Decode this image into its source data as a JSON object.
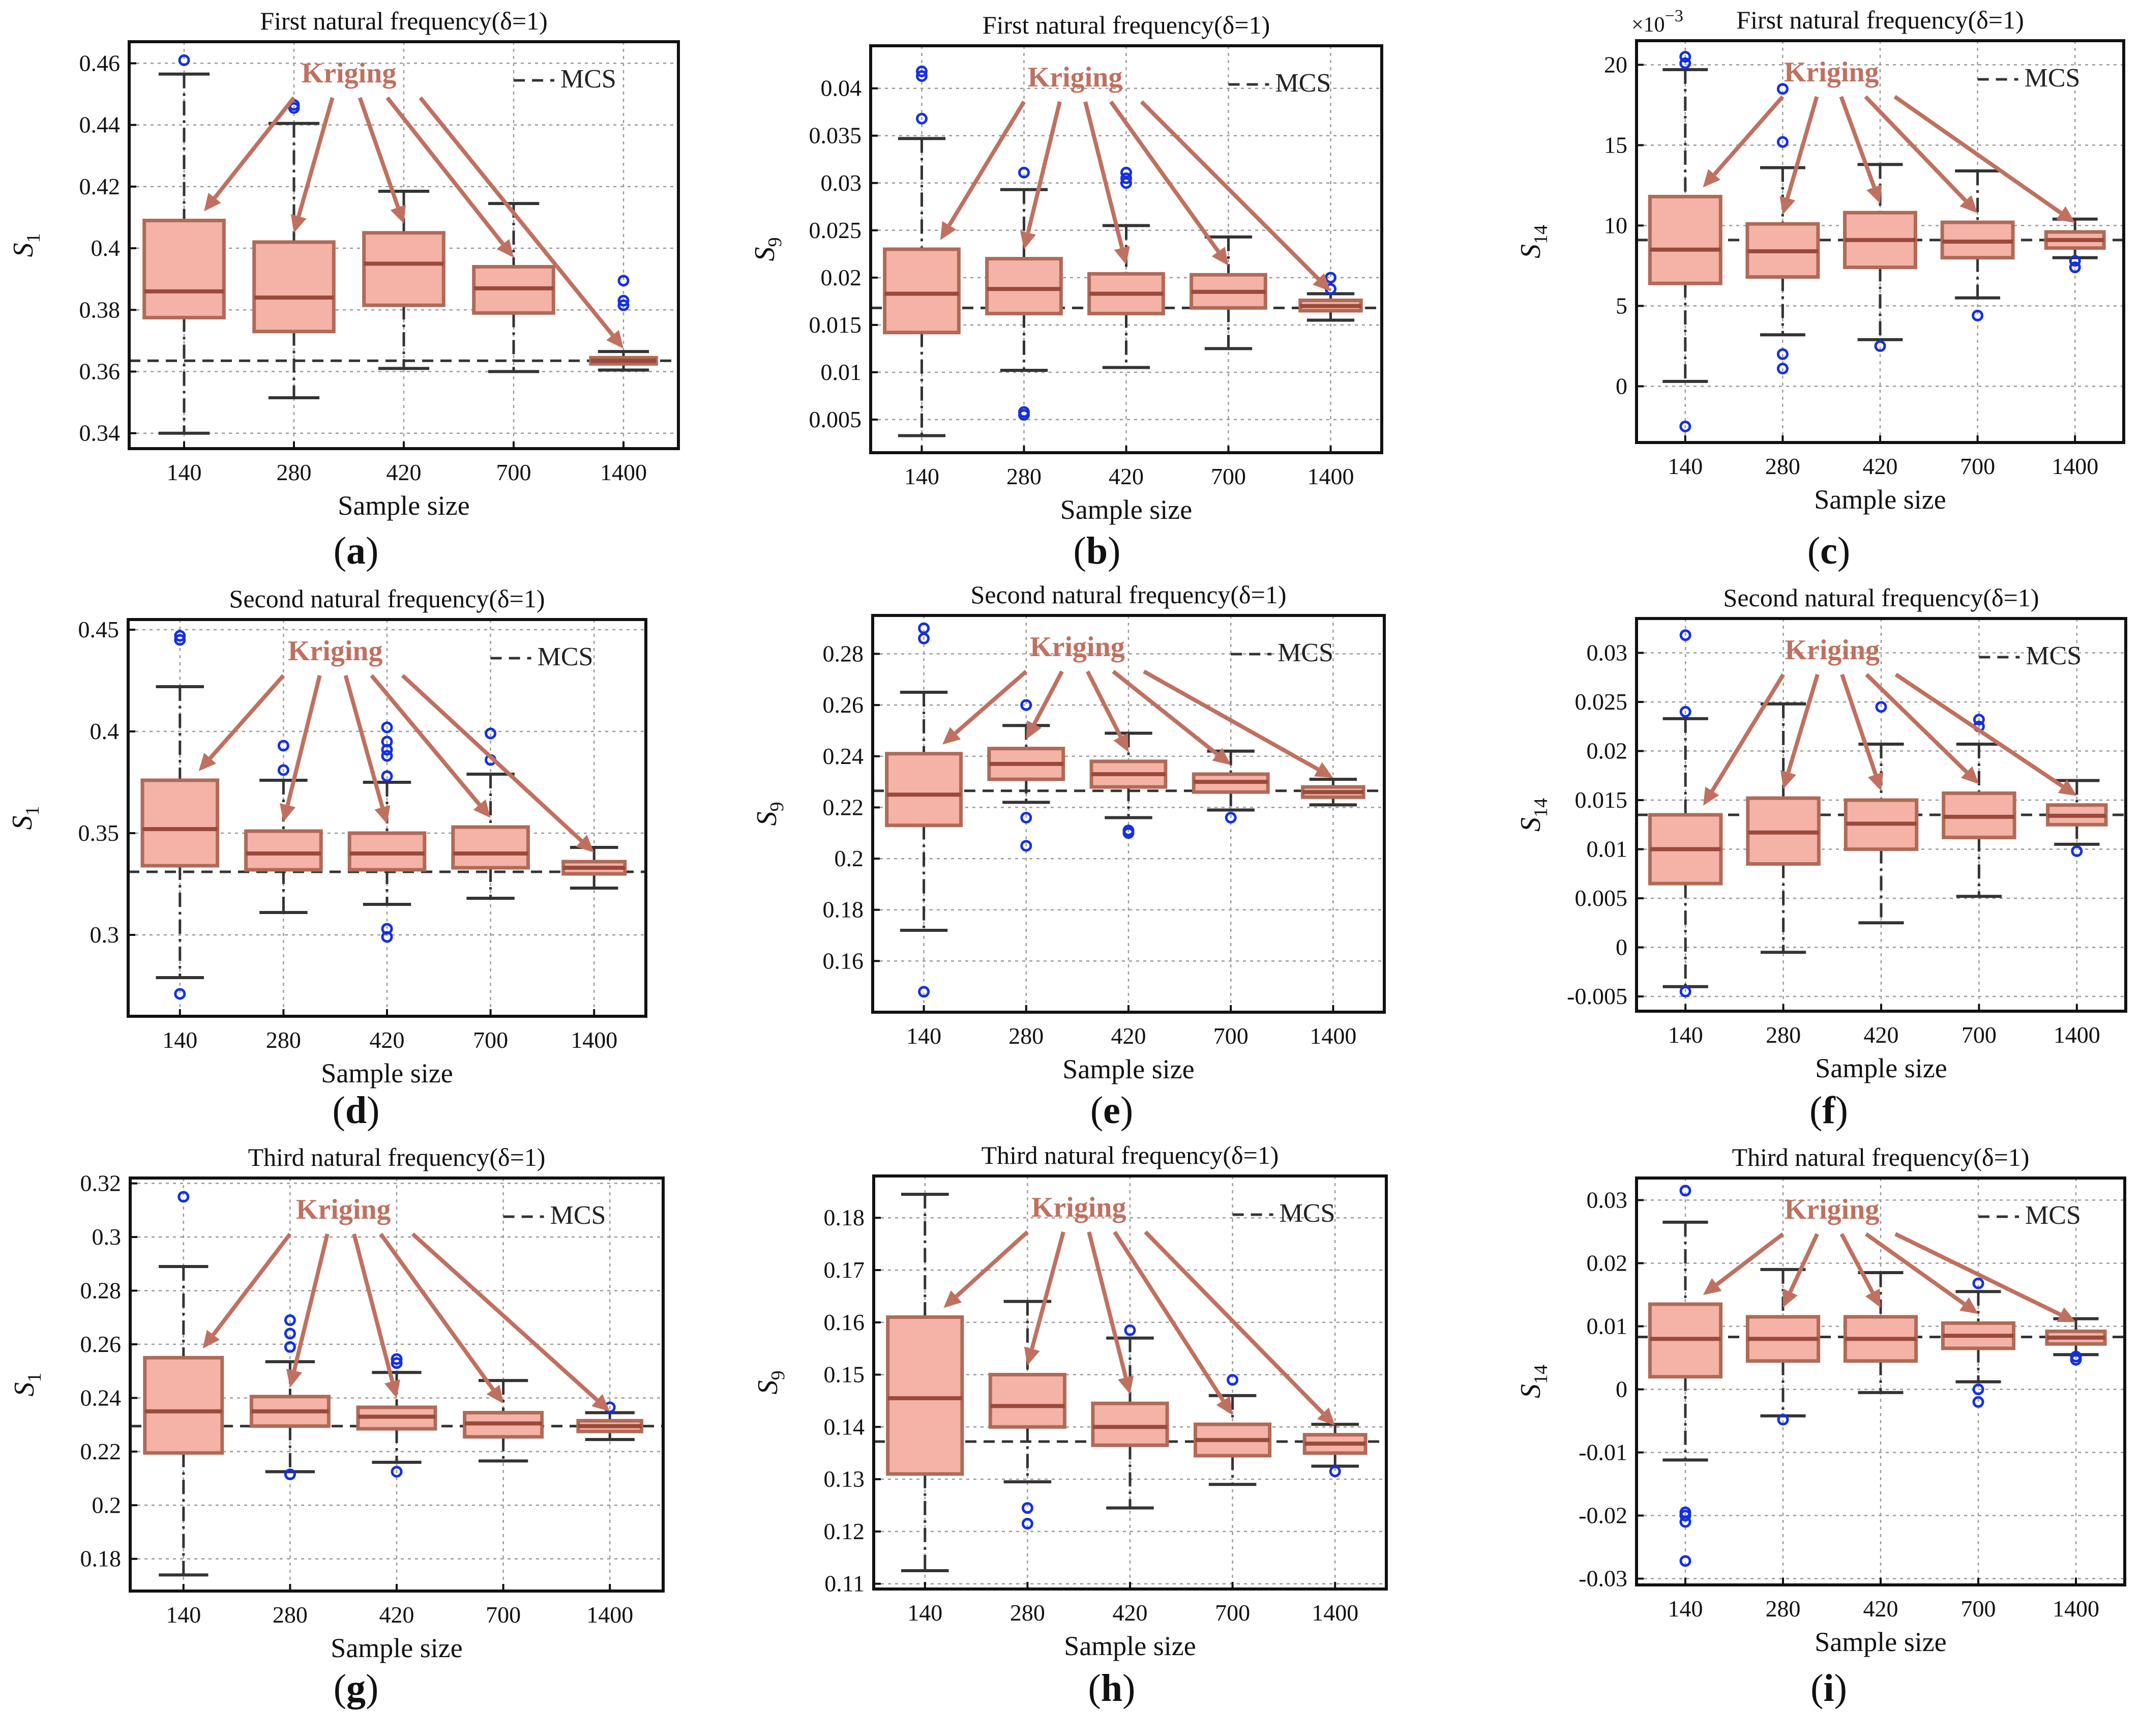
{
  "figure": {
    "colors": {
      "box_fill": "#f4b3a6",
      "box_edge": "#b06a58",
      "outlier": "#1530e0",
      "kriging": "#c07060",
      "mcs": "#333333"
    },
    "annotation_label": "Kriging",
    "legend_label": "MCS",
    "xlabel": "Sample size"
  },
  "chart_data": [
    {
      "panel": "(a)",
      "letter": "a",
      "type": "boxplot",
      "title": "First natural frequency(δ=1)",
      "xlabel": "Sample size",
      "ylabel": "S",
      "ylabel_sub": "1",
      "categories": [
        "140",
        "280",
        "420",
        "700",
        "1400"
      ],
      "ylim": [
        0.335,
        0.467
      ],
      "yticks": [
        0.34,
        0.36,
        0.38,
        0.4,
        0.42,
        0.44,
        0.46
      ],
      "ytick_labels": [
        "0.34",
        "0.36",
        "0.38",
        "0.4",
        "0.42",
        "0.44",
        "0.46"
      ],
      "mcs": 0.3635,
      "boxes": [
        {
          "min": 0.34,
          "q1": 0.3775,
          "median": 0.386,
          "q3": 0.409,
          "max": 0.4565,
          "outliers": [
            0.461
          ]
        },
        {
          "min": 0.3515,
          "q1": 0.373,
          "median": 0.384,
          "q3": 0.402,
          "max": 0.4405,
          "outliers": [
            0.4465,
            0.4455
          ]
        },
        {
          "min": 0.361,
          "q1": 0.3815,
          "median": 0.395,
          "q3": 0.405,
          "max": 0.4185,
          "outliers": []
        },
        {
          "min": 0.36,
          "q1": 0.379,
          "median": 0.387,
          "q3": 0.394,
          "max": 0.4145,
          "outliers": []
        },
        {
          "min": 0.3605,
          "q1": 0.3625,
          "median": 0.3635,
          "q3": 0.3645,
          "max": 0.3665,
          "outliers": [
            0.3895,
            0.383,
            0.3815
          ]
        }
      ]
    },
    {
      "panel": "(b)",
      "letter": "b",
      "type": "boxplot",
      "title": "First natural frequency(δ=1)",
      "xlabel": "Sample size",
      "ylabel": "S",
      "ylabel_sub": "9",
      "categories": [
        "140",
        "280",
        "420",
        "700",
        "1400"
      ],
      "ylim": [
        0.0015,
        0.0445
      ],
      "yticks": [
        0.005,
        0.01,
        0.015,
        0.02,
        0.025,
        0.03,
        0.035,
        0.04
      ],
      "ytick_labels": [
        "0.005",
        "0.01",
        "0.015",
        "0.02",
        "0.025",
        "0.03",
        "0.035",
        "0.04"
      ],
      "mcs": 0.0168,
      "boxes": [
        {
          "min": 0.0033,
          "q1": 0.0142,
          "median": 0.0183,
          "q3": 0.023,
          "max": 0.0347,
          "outliers": [
            0.0418,
            0.0413,
            0.0368
          ]
        },
        {
          "min": 0.0102,
          "q1": 0.0162,
          "median": 0.0188,
          "q3": 0.022,
          "max": 0.0293,
          "outliers": [
            0.0311,
            0.0058,
            0.0055
          ]
        },
        {
          "min": 0.0105,
          "q1": 0.0162,
          "median": 0.0183,
          "q3": 0.0204,
          "max": 0.0255,
          "outliers": [
            0.0311,
            0.0305,
            0.03
          ]
        },
        {
          "min": 0.0125,
          "q1": 0.0168,
          "median": 0.0185,
          "q3": 0.0203,
          "max": 0.0243,
          "outliers": []
        },
        {
          "min": 0.0155,
          "q1": 0.0165,
          "median": 0.017,
          "q3": 0.0176,
          "max": 0.0183,
          "outliers": [
            0.02,
            0.0188
          ]
        }
      ]
    },
    {
      "panel": "(c)",
      "letter": "c",
      "type": "boxplot",
      "title": "First natural frequency(δ=1)",
      "xlabel": "Sample size",
      "ylabel": "S",
      "ylabel_sub": "14",
      "exponent_label": "×10",
      "exponent_power": "−3",
      "categories": [
        "140",
        "280",
        "420",
        "700",
        "1400"
      ],
      "ylim": [
        -3.5,
        21.5
      ],
      "yticks": [
        0,
        5,
        10,
        15,
        20
      ],
      "ytick_labels": [
        "0",
        "5",
        "10",
        "15",
        "20"
      ],
      "mcs": 9.1,
      "boxes": [
        {
          "min": 0.3,
          "q1": 6.4,
          "median": 8.5,
          "q3": 11.8,
          "max": 19.7,
          "outliers": [
            20.5,
            20.1,
            -2.5
          ]
        },
        {
          "min": 3.2,
          "q1": 6.8,
          "median": 8.4,
          "q3": 10.1,
          "max": 13.6,
          "outliers": [
            18.5,
            15.2,
            2.0,
            1.1
          ]
        },
        {
          "min": 2.9,
          "q1": 7.4,
          "median": 9.1,
          "q3": 10.8,
          "max": 13.8,
          "outliers": [
            2.5
          ]
        },
        {
          "min": 5.5,
          "q1": 8.0,
          "median": 9.0,
          "q3": 10.2,
          "max": 13.4,
          "outliers": [
            4.4
          ]
        },
        {
          "min": 8.0,
          "q1": 8.6,
          "median": 9.1,
          "q3": 9.6,
          "max": 10.4,
          "outliers": [
            7.8,
            7.4
          ]
        }
      ]
    },
    {
      "panel": "(d)",
      "letter": "d",
      "type": "boxplot",
      "title": "Second natural frequency(δ=1)",
      "xlabel": "Sample size",
      "ylabel": "S",
      "ylabel_sub": "1",
      "categories": [
        "140",
        "280",
        "420",
        "700",
        "1400"
      ],
      "ylim": [
        0.26,
        0.455
      ],
      "yticks": [
        0.3,
        0.35,
        0.4,
        0.45
      ],
      "ytick_labels": [
        "0.3",
        "0.35",
        "0.4",
        "0.45"
      ],
      "mcs": 0.331,
      "boxes": [
        {
          "min": 0.279,
          "q1": 0.334,
          "median": 0.352,
          "q3": 0.376,
          "max": 0.422,
          "outliers": [
            0.447,
            0.445,
            0.271
          ]
        },
        {
          "min": 0.311,
          "q1": 0.332,
          "median": 0.34,
          "q3": 0.351,
          "max": 0.376,
          "outliers": [
            0.393,
            0.381
          ]
        },
        {
          "min": 0.315,
          "q1": 0.332,
          "median": 0.34,
          "q3": 0.35,
          "max": 0.375,
          "outliers": [
            0.402,
            0.395,
            0.391,
            0.388,
            0.378,
            0.303,
            0.299
          ]
        },
        {
          "min": 0.318,
          "q1": 0.333,
          "median": 0.34,
          "q3": 0.353,
          "max": 0.379,
          "outliers": [
            0.399,
            0.386
          ]
        },
        {
          "min": 0.323,
          "q1": 0.33,
          "median": 0.333,
          "q3": 0.336,
          "max": 0.343,
          "outliers": []
        }
      ]
    },
    {
      "panel": "(e)",
      "letter": "e",
      "type": "boxplot",
      "title": "Second natural frequency(δ=1)",
      "xlabel": "Sample size",
      "ylabel": "S",
      "ylabel_sub": "9",
      "categories": [
        "140",
        "280",
        "420",
        "700",
        "1400"
      ],
      "ylim": [
        0.14,
        0.295
      ],
      "yticks": [
        0.16,
        0.18,
        0.2,
        0.22,
        0.24,
        0.26,
        0.28
      ],
      "ytick_labels": [
        "0.16",
        "0.18",
        "0.2",
        "0.22",
        "0.24",
        "0.26",
        "0.28"
      ],
      "mcs": 0.2265,
      "boxes": [
        {
          "min": 0.172,
          "q1": 0.213,
          "median": 0.225,
          "q3": 0.241,
          "max": 0.265,
          "outliers": [
            0.29,
            0.286,
            0.148
          ]
        },
        {
          "min": 0.222,
          "q1": 0.231,
          "median": 0.237,
          "q3": 0.243,
          "max": 0.252,
          "outliers": [
            0.26,
            0.216,
            0.205
          ]
        },
        {
          "min": 0.216,
          "q1": 0.228,
          "median": 0.233,
          "q3": 0.238,
          "max": 0.249,
          "outliers": [
            0.211,
            0.21
          ]
        },
        {
          "min": 0.219,
          "q1": 0.226,
          "median": 0.23,
          "q3": 0.233,
          "max": 0.242,
          "outliers": [
            0.216
          ]
        },
        {
          "min": 0.221,
          "q1": 0.224,
          "median": 0.226,
          "q3": 0.228,
          "max": 0.231,
          "outliers": []
        }
      ]
    },
    {
      "panel": "(f)",
      "letter": "f",
      "type": "boxplot",
      "title": "Second natural frequency(δ=1)",
      "xlabel": "Sample size",
      "ylabel": "S",
      "ylabel_sub": "14",
      "categories": [
        "140",
        "280",
        "420",
        "700",
        "1400"
      ],
      "ylim": [
        -0.0065,
        0.0335
      ],
      "yticks": [
        -0.005,
        0,
        0.005,
        0.01,
        0.015,
        0.02,
        0.025,
        0.03
      ],
      "ytick_labels": [
        "-0.005",
        "0",
        "0.005",
        "0.01",
        "0.015",
        "0.02",
        "0.025",
        "0.03"
      ],
      "mcs": 0.0135,
      "boxes": [
        {
          "min": -0.004,
          "q1": 0.0065,
          "median": 0.01,
          "q3": 0.0135,
          "max": 0.0233,
          "outliers": [
            0.0318,
            0.024,
            -0.0045
          ]
        },
        {
          "min": -0.0005,
          "q1": 0.0085,
          "median": 0.0117,
          "q3": 0.0152,
          "max": 0.0248,
          "outliers": []
        },
        {
          "min": 0.0025,
          "q1": 0.01,
          "median": 0.0126,
          "q3": 0.015,
          "max": 0.0207,
          "outliers": [
            0.0245
          ]
        },
        {
          "min": 0.0052,
          "q1": 0.0112,
          "median": 0.0133,
          "q3": 0.0157,
          "max": 0.0207,
          "outliers": [
            0.0232,
            0.0225
          ]
        },
        {
          "min": 0.0105,
          "q1": 0.0125,
          "median": 0.0134,
          "q3": 0.0145,
          "max": 0.017,
          "outliers": [
            0.0098
          ]
        }
      ]
    },
    {
      "panel": "(g)",
      "letter": "g",
      "type": "boxplot",
      "title": "Third natural frequency(δ=1)",
      "xlabel": "Sample size",
      "ylabel": "S",
      "ylabel_sub": "1",
      "categories": [
        "140",
        "280",
        "420",
        "700",
        "1400"
      ],
      "ylim": [
        0.168,
        0.322
      ],
      "yticks": [
        0.18,
        0.2,
        0.22,
        0.24,
        0.26,
        0.28,
        0.3,
        0.32
      ],
      "ytick_labels": [
        "0.18",
        "0.2",
        "0.22",
        "0.24",
        "0.26",
        "0.28",
        "0.3",
        "0.32"
      ],
      "mcs": 0.2295,
      "boxes": [
        {
          "min": 0.174,
          "q1": 0.2195,
          "median": 0.235,
          "q3": 0.255,
          "max": 0.289,
          "outliers": [
            0.315
          ]
        },
        {
          "min": 0.2125,
          "q1": 0.2295,
          "median": 0.235,
          "q3": 0.2405,
          "max": 0.2535,
          "outliers": [
            0.269,
            0.264,
            0.259,
            0.2115
          ]
        },
        {
          "min": 0.216,
          "q1": 0.2285,
          "median": 0.233,
          "q3": 0.2365,
          "max": 0.2495,
          "outliers": [
            0.2545,
            0.253,
            0.2125
          ]
        },
        {
          "min": 0.2165,
          "q1": 0.2255,
          "median": 0.2305,
          "q3": 0.2345,
          "max": 0.2465,
          "outliers": []
        },
        {
          "min": 0.2245,
          "q1": 0.2275,
          "median": 0.2295,
          "q3": 0.2315,
          "max": 0.2345,
          "outliers": [
            0.2365
          ]
        }
      ]
    },
    {
      "panel": "(h)",
      "letter": "h",
      "type": "boxplot",
      "title": "Third natural frequency(δ=1)",
      "xlabel": "Sample size",
      "ylabel": "S",
      "ylabel_sub": "9",
      "categories": [
        "140",
        "280",
        "420",
        "700",
        "1400"
      ],
      "ylim": [
        0.109,
        0.188
      ],
      "yticks": [
        0.11,
        0.12,
        0.13,
        0.14,
        0.15,
        0.16,
        0.17,
        0.18
      ],
      "ytick_labels": [
        "0.11",
        "0.12",
        "0.13",
        "0.14",
        "0.15",
        "0.16",
        "0.17",
        "0.18"
      ],
      "mcs": 0.1372,
      "boxes": [
        {
          "min": 0.1125,
          "q1": 0.131,
          "median": 0.1455,
          "q3": 0.161,
          "max": 0.1845,
          "outliers": []
        },
        {
          "min": 0.1295,
          "q1": 0.14,
          "median": 0.144,
          "q3": 0.15,
          "max": 0.164,
          "outliers": [
            0.1245,
            0.1215
          ]
        },
        {
          "min": 0.1245,
          "q1": 0.1365,
          "median": 0.14,
          "q3": 0.1445,
          "max": 0.157,
          "outliers": [
            0.1585
          ]
        },
        {
          "min": 0.129,
          "q1": 0.1345,
          "median": 0.1375,
          "q3": 0.1405,
          "max": 0.146,
          "outliers": [
            0.149
          ]
        },
        {
          "min": 0.1325,
          "q1": 0.135,
          "median": 0.1368,
          "q3": 0.1385,
          "max": 0.1405,
          "outliers": [
            0.1315
          ]
        }
      ]
    },
    {
      "panel": "(i)",
      "letter": "i",
      "type": "boxplot",
      "title": "Third natural frequency(δ=1)",
      "xlabel": "Sample size",
      "ylabel": "S",
      "ylabel_sub": "14",
      "categories": [
        "140",
        "280",
        "420",
        "700",
        "1400"
      ],
      "ylim": [
        -0.031,
        0.0335
      ],
      "yticks": [
        -0.03,
        -0.02,
        -0.01,
        0,
        0.01,
        0.02,
        0.03
      ],
      "ytick_labels": [
        "-0.03",
        "-0.02",
        "-0.01",
        "0",
        "0.01",
        "0.02",
        "0.03"
      ],
      "mcs": 0.0083,
      "boxes": [
        {
          "min": -0.0112,
          "q1": 0.002,
          "median": 0.008,
          "q3": 0.0135,
          "max": 0.0265,
          "outliers": [
            0.0315,
            -0.0195,
            -0.02,
            -0.021,
            -0.0272
          ]
        },
        {
          "min": -0.0042,
          "q1": 0.0045,
          "median": 0.008,
          "q3": 0.0115,
          "max": 0.019,
          "outliers": [
            -0.0048
          ]
        },
        {
          "min": -0.0005,
          "q1": 0.0045,
          "median": 0.008,
          "q3": 0.0115,
          "max": 0.0185,
          "outliers": []
        },
        {
          "min": 0.0012,
          "q1": 0.0065,
          "median": 0.0085,
          "q3": 0.0105,
          "max": 0.0155,
          "outliers": [
            0.0168,
            0.0,
            -0.002
          ]
        },
        {
          "min": 0.0055,
          "q1": 0.0072,
          "median": 0.0082,
          "q3": 0.0092,
          "max": 0.0112,
          "outliers": [
            0.0052,
            0.0047
          ]
        }
      ]
    }
  ]
}
